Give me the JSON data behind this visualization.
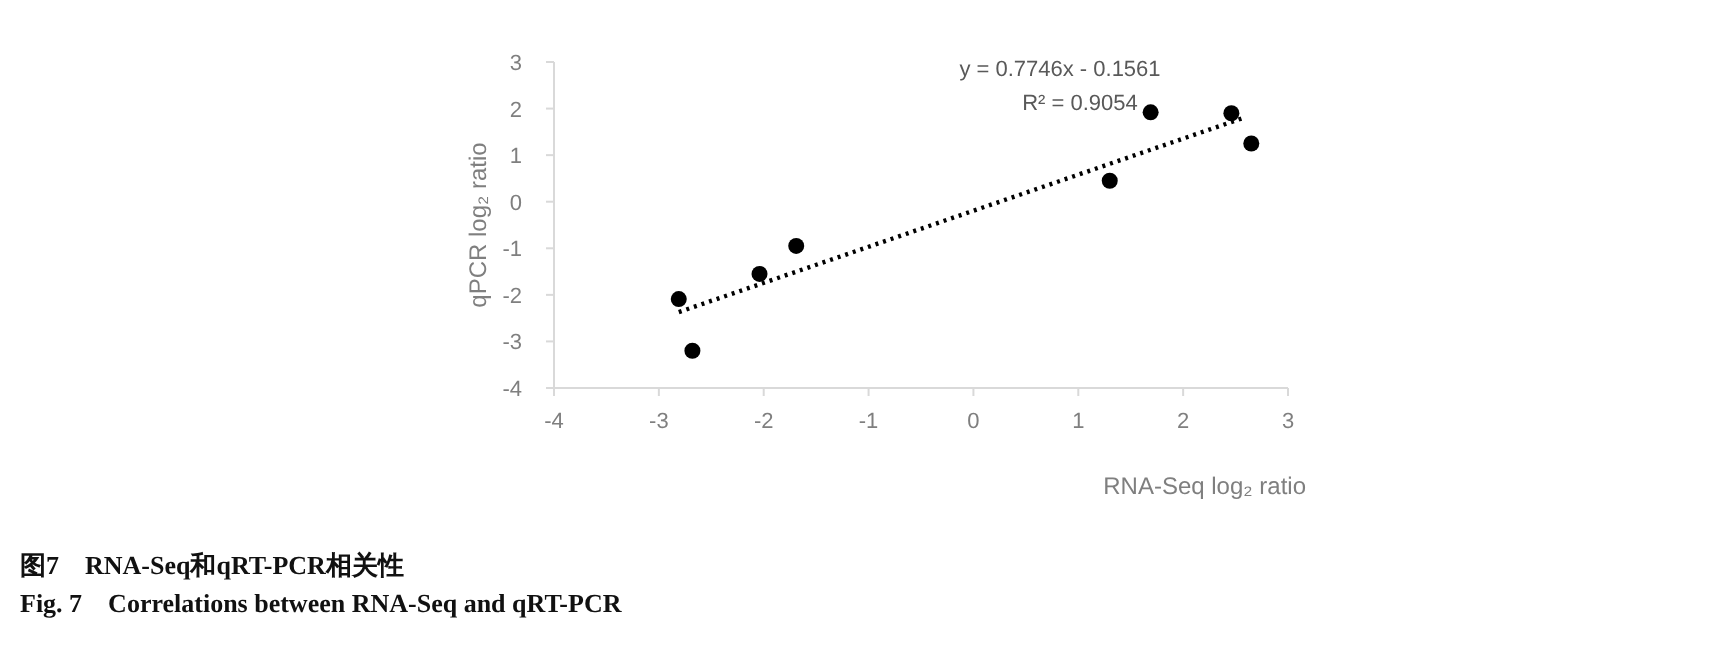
{
  "chart_data": {
    "type": "scatter",
    "title": "图7　RNA-Seq和qRT-PCR相关性",
    "subtitle": "Fig. 7　Correlations between RNA-Seq and qRT-PCR",
    "xlabel": "RNA-Seq log₂ ratio",
    "ylabel": "qPCR log₂ ratio",
    "annotations": [
      "y = 0.7746x - 0.1561",
      "R² = 0.9054"
    ],
    "xlim": [
      -4,
      3
    ],
    "ylim": [
      -4,
      3
    ],
    "xticks": [
      -4,
      -3,
      -2,
      -1,
      0,
      1,
      2,
      3
    ],
    "yticks": [
      -4,
      -3,
      -2,
      -1,
      0,
      1,
      2,
      3
    ],
    "grid": false,
    "series": [
      {
        "type": "scatter",
        "marker": "circle",
        "color": "#000000",
        "x": [
          -2.81,
          -2.68,
          -2.04,
          -1.69,
          1.3,
          1.69,
          2.46,
          2.65
        ],
        "values": [
          -2.09,
          -3.2,
          -1.55,
          -0.95,
          0.45,
          1.92,
          1.9,
          1.25
        ]
      },
      {
        "type": "line",
        "line_style": "dotted",
        "color": "#000000",
        "x": [
          -2.81,
          2.6
        ],
        "values": [
          -2.37,
          1.82
        ]
      }
    ]
  }
}
